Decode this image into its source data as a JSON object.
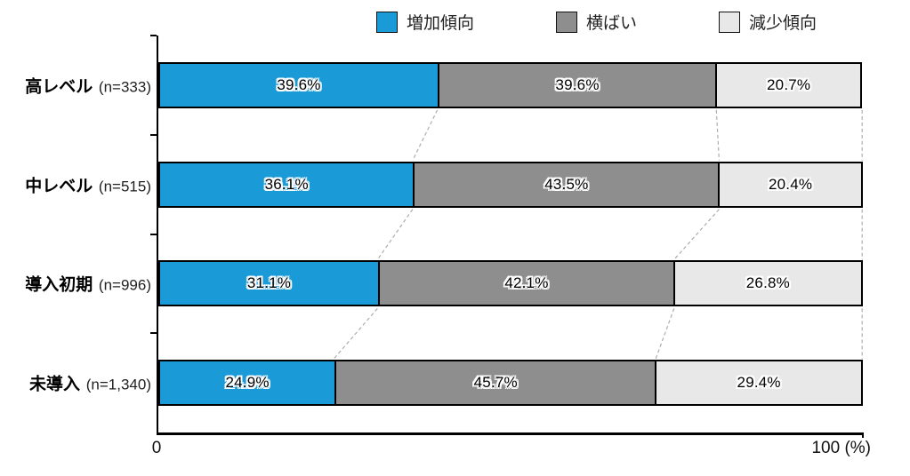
{
  "chart_data": {
    "type": "bar",
    "stacked": true,
    "orientation": "horizontal",
    "title": "",
    "xlabel": "",
    "ylabel": "",
    "xlim": [
      0,
      100
    ],
    "grid": false,
    "legend_position": "top",
    "connectors_between_bars": true,
    "value_suffix": "%",
    "categories": [
      {
        "label": "高レベル",
        "n_label": "(n=333)"
      },
      {
        "label": "中レベル",
        "n_label": "(n=515)"
      },
      {
        "label": "導入初期",
        "n_label": "(n=996)"
      },
      {
        "label": "未導入",
        "n_label": "(n=1,340)"
      }
    ],
    "series": [
      {
        "name": "増加傾向",
        "color": "#1B9AD8",
        "values": [
          39.6,
          36.1,
          31.1,
          24.9
        ]
      },
      {
        "name": "横ばい",
        "color": "#8E8E8E",
        "values": [
          39.6,
          43.5,
          42.1,
          45.7
        ]
      },
      {
        "name": "減少傾向",
        "color": "#E8E8E8",
        "values": [
          20.7,
          20.4,
          26.8,
          29.4
        ]
      }
    ],
    "x_axis": {
      "min_label": "0",
      "max_label": "100",
      "unit_label": "(%)"
    },
    "connector_color": "#ADADAD",
    "bar_border_color": "#000000"
  }
}
